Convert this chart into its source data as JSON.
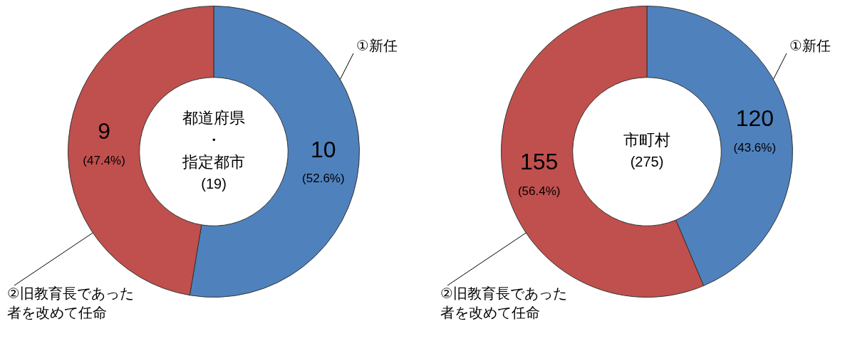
{
  "chart_data": [
    {
      "type": "donut",
      "title": "都道府県・指定都市",
      "subtitle": "(19)",
      "categories": [
        "①新任",
        "②旧教育長であった者を改めて任命"
      ],
      "values": [
        10,
        9
      ],
      "colors": [
        "#4f81bd",
        "#c0504d"
      ],
      "value_labels": [
        "10\n(52.6%)",
        "9\n(47.4%)"
      ]
    },
    {
      "type": "donut",
      "title": "市町村",
      "subtitle": "(275)",
      "categories": [
        "①新任",
        "②旧教育長であった者を改めて任命"
      ],
      "values": [
        120,
        155
      ],
      "colors": [
        "#4f81bd",
        "#c0504d"
      ],
      "value_labels": [
        "120\n(43.6%)",
        "155\n(56.4%)"
      ]
    }
  ]
}
